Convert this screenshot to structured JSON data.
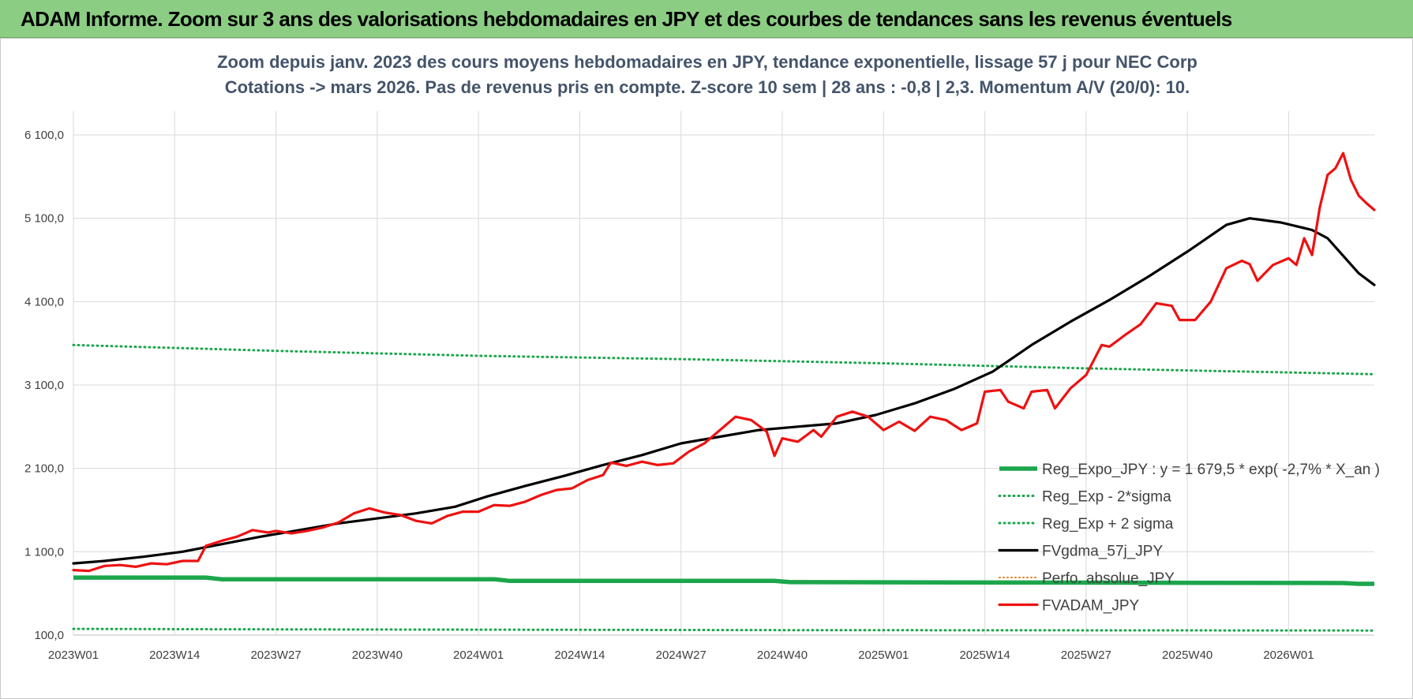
{
  "header": {
    "title": "ADAM Informe. Zoom sur 3 ans des valorisations hebdomadaires en JPY et des courbes de tendances sans les revenus éventuels"
  },
  "colors": {
    "banner": "#8ccd84",
    "green": "#1ca64c",
    "black": "#000000",
    "red": "#ee1111",
    "orange": "#e07b1e",
    "title": "#44546a"
  },
  "chart_data": {
    "type": "line",
    "title": "Zoom depuis janv. 2023 des cours moyens hebdomadaires en JPY, tendance exponentielle, lissage 57 j pour NEC Corp",
    "subtitle": "Cotations -> mars 2026. Pas de revenus pris en compte. Z-score 10 sem | 28 ans : -0,8 | 2,3. Momentum A/V (20/0): 10.",
    "x_tick_labels": [
      "2023W01",
      "2023W14",
      "2023W27",
      "2023W40",
      "2024W01",
      "2024W14",
      "2024W27",
      "2024W40",
      "2025W01",
      "2025W14",
      "2025W27",
      "2025W40",
      "2026W01"
    ],
    "x_start": "2023W01",
    "x_end": "2026W12",
    "ylim": [
      100,
      6100
    ],
    "y_tick_labels": [
      "100,0",
      "1 100,0",
      "2 100,0",
      "3 100,0",
      "4 100,0",
      "5 100,0",
      "6 100,0"
    ],
    "y_tick_values": [
      100,
      1100,
      2100,
      3100,
      4100,
      5100,
      6100
    ],
    "grid": true,
    "legend_position": "bottom-right",
    "series": [
      {
        "name": "Reg_Expo_JPY : y = 1 679,5 * exp( -2,7% *  X_an )",
        "style": "solid-thick",
        "color": "#1ca64c",
        "points": [
          [
            "2023W01",
            790
          ],
          [
            "2023W18",
            790
          ],
          [
            "2023W20",
            770
          ],
          [
            "2024W03",
            770
          ],
          [
            "2024W05",
            750
          ],
          [
            "2024W39",
            750
          ],
          [
            "2024W41",
            735
          ],
          [
            "2025W20",
            730
          ],
          [
            "2026W08",
            725
          ],
          [
            "2026W10",
            715
          ],
          [
            "2026W12",
            715
          ]
        ]
      },
      {
        "name": "Reg_Exp - 2*sigma",
        "style": "dotted",
        "color": "#1ca64c",
        "points": [
          [
            "2023W01",
            175
          ],
          [
            "2023W20",
            170
          ],
          [
            "2024W01",
            165
          ],
          [
            "2024W40",
            160
          ],
          [
            "2025W20",
            158
          ],
          [
            "2026W12",
            155
          ]
        ]
      },
      {
        "name": "Reg_Exp + 2 sigma",
        "style": "dotted",
        "color": "#1ca64c",
        "points": [
          [
            "2023W01",
            3580
          ],
          [
            "2023W27",
            3510
          ],
          [
            "2024W01",
            3450
          ],
          [
            "2024W27",
            3410
          ],
          [
            "2025W01",
            3360
          ],
          [
            "2025W27",
            3300
          ],
          [
            "2026W01",
            3250
          ],
          [
            "2026W12",
            3230
          ]
        ]
      },
      {
        "name": "FVgdma_57j_JPY",
        "style": "solid",
        "color": "#000000",
        "points": [
          [
            "2023W01",
            960
          ],
          [
            "2023W05",
            990
          ],
          [
            "2023W10",
            1040
          ],
          [
            "2023W15",
            1100
          ],
          [
            "2023W20",
            1190
          ],
          [
            "2023W25",
            1280
          ],
          [
            "2023W30",
            1360
          ],
          [
            "2023W35",
            1440
          ],
          [
            "2023W40",
            1500
          ],
          [
            "2023W45",
            1560
          ],
          [
            "2023W50",
            1640
          ],
          [
            "2024W02",
            1760
          ],
          [
            "2024W07",
            1890
          ],
          [
            "2024W12",
            2010
          ],
          [
            "2024W17",
            2140
          ],
          [
            "2024W22",
            2260
          ],
          [
            "2024W27",
            2400
          ],
          [
            "2024W32",
            2480
          ],
          [
            "2024W37",
            2560
          ],
          [
            "2024W42",
            2600
          ],
          [
            "2024W47",
            2640
          ],
          [
            "2024W52",
            2740
          ],
          [
            "2025W05",
            2880
          ],
          [
            "2025W10",
            3050
          ],
          [
            "2025W15",
            3260
          ],
          [
            "2025W20",
            3580
          ],
          [
            "2025W25",
            3860
          ],
          [
            "2025W30",
            4120
          ],
          [
            "2025W35",
            4400
          ],
          [
            "2025W40",
            4700
          ],
          [
            "2025W45",
            5020
          ],
          [
            "2025W48",
            5100
          ],
          [
            "2025W52",
            5050
          ],
          [
            "2026W04",
            4960
          ],
          [
            "2026W06",
            4860
          ],
          [
            "2026W08",
            4650
          ],
          [
            "2026W10",
            4440
          ],
          [
            "2026W12",
            4300
          ]
        ]
      },
      {
        "name": "Perfo. absolue_JPY",
        "style": "dotted-thin",
        "color": "#e07b1e",
        "points": []
      },
      {
        "name": "FVADAM_JPY",
        "style": "solid",
        "color": "#ee1111",
        "points": [
          [
            "2023W01",
            880
          ],
          [
            "2023W03",
            870
          ],
          [
            "2023W05",
            930
          ],
          [
            "2023W07",
            940
          ],
          [
            "2023W09",
            920
          ],
          [
            "2023W11",
            960
          ],
          [
            "2023W13",
            950
          ],
          [
            "2023W15",
            990
          ],
          [
            "2023W17",
            990
          ],
          [
            "2023W18",
            1170
          ],
          [
            "2023W20",
            1230
          ],
          [
            "2023W22",
            1280
          ],
          [
            "2023W24",
            1360
          ],
          [
            "2023W26",
            1330
          ],
          [
            "2023W27",
            1350
          ],
          [
            "2023W29",
            1320
          ],
          [
            "2023W31",
            1350
          ],
          [
            "2023W33",
            1390
          ],
          [
            "2023W35",
            1450
          ],
          [
            "2023W37",
            1560
          ],
          [
            "2023W39",
            1620
          ],
          [
            "2023W41",
            1570
          ],
          [
            "2023W43",
            1540
          ],
          [
            "2023W45",
            1470
          ],
          [
            "2023W47",
            1440
          ],
          [
            "2023W49",
            1530
          ],
          [
            "2023W51",
            1580
          ],
          [
            "2024W01",
            1580
          ],
          [
            "2024W03",
            1660
          ],
          [
            "2024W05",
            1650
          ],
          [
            "2024W07",
            1700
          ],
          [
            "2024W09",
            1780
          ],
          [
            "2024W11",
            1840
          ],
          [
            "2024W13",
            1860
          ],
          [
            "2024W15",
            1960
          ],
          [
            "2024W17",
            2020
          ],
          [
            "2024W18",
            2170
          ],
          [
            "2024W20",
            2130
          ],
          [
            "2024W22",
            2180
          ],
          [
            "2024W24",
            2140
          ],
          [
            "2024W26",
            2160
          ],
          [
            "2024W28",
            2300
          ],
          [
            "2024W30",
            2400
          ],
          [
            "2024W32",
            2560
          ],
          [
            "2024W34",
            2720
          ],
          [
            "2024W36",
            2680
          ],
          [
            "2024W38",
            2540
          ],
          [
            "2024W39",
            2250
          ],
          [
            "2024W40",
            2460
          ],
          [
            "2024W42",
            2420
          ],
          [
            "2024W44",
            2560
          ],
          [
            "2024W45",
            2480
          ],
          [
            "2024W47",
            2720
          ],
          [
            "2024W49",
            2780
          ],
          [
            "2024W51",
            2720
          ],
          [
            "2025W01",
            2560
          ],
          [
            "2025W03",
            2660
          ],
          [
            "2025W05",
            2550
          ],
          [
            "2025W07",
            2720
          ],
          [
            "2025W09",
            2680
          ],
          [
            "2025W11",
            2560
          ],
          [
            "2025W13",
            2640
          ],
          [
            "2025W14",
            3020
          ],
          [
            "2025W16",
            3040
          ],
          [
            "2025W17",
            2900
          ],
          [
            "2025W19",
            2820
          ],
          [
            "2025W20",
            3020
          ],
          [
            "2025W22",
            3040
          ],
          [
            "2025W23",
            2820
          ],
          [
            "2025W25",
            3060
          ],
          [
            "2025W27",
            3220
          ],
          [
            "2025W29",
            3580
          ],
          [
            "2025W30",
            3560
          ],
          [
            "2025W32",
            3700
          ],
          [
            "2025W34",
            3830
          ],
          [
            "2025W36",
            4080
          ],
          [
            "2025W38",
            4050
          ],
          [
            "2025W39",
            3880
          ],
          [
            "2025W41",
            3880
          ],
          [
            "2025W43",
            4100
          ],
          [
            "2025W45",
            4500
          ],
          [
            "2025W47",
            4590
          ],
          [
            "2025W48",
            4550
          ],
          [
            "2025W49",
            4350
          ],
          [
            "2025W51",
            4540
          ],
          [
            "2026W01",
            4620
          ],
          [
            "2026W02",
            4540
          ],
          [
            "2026W03",
            4860
          ],
          [
            "2026W04",
            4660
          ],
          [
            "2026W05",
            5230
          ],
          [
            "2026W06",
            5620
          ],
          [
            "2026W07",
            5700
          ],
          [
            "2026W08",
            5880
          ],
          [
            "2026W09",
            5560
          ],
          [
            "2026W10",
            5370
          ],
          [
            "2026W11",
            5280
          ],
          [
            "2026W12",
            5200
          ]
        ]
      }
    ]
  }
}
